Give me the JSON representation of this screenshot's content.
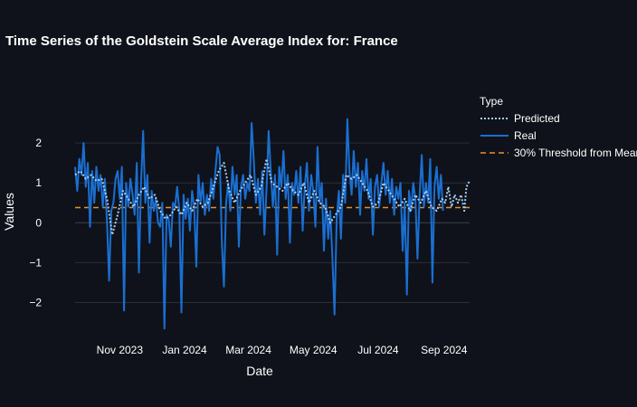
{
  "chart_data": {
    "type": "line",
    "title": "Time Series of the Goldstein Scale Average Index for: France",
    "xlabel": "Date",
    "ylabel": "Values",
    "x_range": [
      "2023-09-20",
      "2024-09-25"
    ],
    "ylim": [
      -2.85,
      2.75
    ],
    "x_ticks": [
      {
        "date": "2023-11-01",
        "label": "Nov 2023"
      },
      {
        "date": "2024-01-01",
        "label": "Jan 2024"
      },
      {
        "date": "2024-03-01",
        "label": "Mar 2024"
      },
      {
        "date": "2024-05-01",
        "label": "May 2024"
      },
      {
        "date": "2024-07-01",
        "label": "Jul 2024"
      },
      {
        "date": "2024-09-01",
        "label": "Sep 2024"
      }
    ],
    "y_ticks": [
      {
        "value": 2,
        "label": "2"
      },
      {
        "value": 1,
        "label": "1"
      },
      {
        "value": 0,
        "label": "0"
      },
      {
        "value": -1,
        "label": "−1"
      },
      {
        "value": -2,
        "label": "−2"
      }
    ],
    "grid": true,
    "legend": {
      "title": "Type",
      "position": "right-top"
    },
    "series": [
      {
        "name": "Predicted",
        "style": "dotted",
        "color": "#a8cdf0",
        "points": [
          [
            "2023-09-20",
            1.2
          ],
          [
            "2023-09-25",
            1.3
          ],
          [
            "2023-09-30",
            1.1
          ],
          [
            "2023-10-05",
            1.2
          ],
          [
            "2023-10-10",
            1.05
          ],
          [
            "2023-10-15",
            1.1
          ],
          [
            "2023-10-20",
            0.6
          ],
          [
            "2023-10-25",
            -0.3
          ],
          [
            "2023-10-30",
            0.2
          ],
          [
            "2023-11-04",
            0.8
          ],
          [
            "2023-11-09",
            0.6
          ],
          [
            "2023-11-14",
            0.4
          ],
          [
            "2023-11-19",
            0.7
          ],
          [
            "2023-11-24",
            0.9
          ],
          [
            "2023-11-29",
            0.6
          ],
          [
            "2023-12-04",
            0.7
          ],
          [
            "2023-12-09",
            0.3
          ],
          [
            "2023-12-14",
            0.1
          ],
          [
            "2023-12-19",
            0.2
          ],
          [
            "2023-12-24",
            0.4
          ],
          [
            "2023-12-29",
            0.2
          ],
          [
            "2024-01-03",
            0.5
          ],
          [
            "2024-01-08",
            0.3
          ],
          [
            "2024-01-13",
            0.6
          ],
          [
            "2024-01-18",
            0.4
          ],
          [
            "2024-01-23",
            0.5
          ],
          [
            "2024-01-28",
            0.9
          ],
          [
            "2024-02-02",
            1.3
          ],
          [
            "2024-02-07",
            1.5
          ],
          [
            "2024-02-12",
            0.8
          ],
          [
            "2024-02-17",
            0.5
          ],
          [
            "2024-02-22",
            0.8
          ],
          [
            "2024-02-27",
            1.0
          ],
          [
            "2024-03-03",
            1.2
          ],
          [
            "2024-03-08",
            0.7
          ],
          [
            "2024-03-13",
            0.9
          ],
          [
            "2024-03-18",
            1.6
          ],
          [
            "2024-03-23",
            1.0
          ],
          [
            "2024-03-28",
            0.9
          ],
          [
            "2024-04-02",
            0.8
          ],
          [
            "2024-04-07",
            1.0
          ],
          [
            "2024-04-12",
            0.8
          ],
          [
            "2024-04-17",
            0.7
          ],
          [
            "2024-04-22",
            1.0
          ],
          [
            "2024-04-27",
            0.5
          ],
          [
            "2024-05-02",
            0.8
          ],
          [
            "2024-05-07",
            0.5
          ],
          [
            "2024-05-12",
            0.4
          ],
          [
            "2024-05-17",
            0.0
          ],
          [
            "2024-05-22",
            0.2
          ],
          [
            "2024-05-27",
            0.4
          ],
          [
            "2024-06-01",
            1.2
          ],
          [
            "2024-06-06",
            1.1
          ],
          [
            "2024-06-11",
            1.2
          ],
          [
            "2024-06-16",
            1.0
          ],
          [
            "2024-06-21",
            0.8
          ],
          [
            "2024-06-26",
            0.4
          ],
          [
            "2024-07-01",
            0.5
          ],
          [
            "2024-07-06",
            1.0
          ],
          [
            "2024-07-11",
            0.8
          ],
          [
            "2024-07-16",
            0.6
          ],
          [
            "2024-07-21",
            0.4
          ],
          [
            "2024-07-26",
            0.6
          ],
          [
            "2024-07-31",
            0.3
          ],
          [
            "2024-08-05",
            0.7
          ],
          [
            "2024-08-10",
            0.5
          ],
          [
            "2024-08-15",
            0.8
          ],
          [
            "2024-08-20",
            0.4
          ],
          [
            "2024-08-25",
            0.3
          ],
          [
            "2024-08-30",
            0.6
          ],
          [
            "2024-09-02",
            0.5
          ],
          [
            "2024-09-05",
            0.9
          ],
          [
            "2024-09-08",
            0.4
          ],
          [
            "2024-09-11",
            0.7
          ],
          [
            "2024-09-14",
            0.5
          ],
          [
            "2024-09-17",
            0.7
          ],
          [
            "2024-09-20",
            0.3
          ],
          [
            "2024-09-22",
            0.9
          ],
          [
            "2024-09-25",
            1.05
          ]
        ]
      },
      {
        "name": "Real",
        "style": "solid",
        "color": "#1a6fd1",
        "points": [
          [
            "2023-09-20",
            1.4
          ],
          [
            "2023-09-22",
            0.8
          ],
          [
            "2023-09-24",
            1.6
          ],
          [
            "2023-09-26",
            1.2
          ],
          [
            "2023-09-28",
            2.0
          ],
          [
            "2023-09-30",
            0.9
          ],
          [
            "2023-10-02",
            1.5
          ],
          [
            "2023-10-04",
            -0.1
          ],
          [
            "2023-10-06",
            1.3
          ],
          [
            "2023-10-08",
            0.5
          ],
          [
            "2023-10-10",
            1.4
          ],
          [
            "2023-10-12",
            0.8
          ],
          [
            "2023-10-14",
            1.2
          ],
          [
            "2023-10-16",
            0.4
          ],
          [
            "2023-10-18",
            1.1
          ],
          [
            "2023-10-20",
            0.0
          ],
          [
            "2023-10-22",
            -1.45
          ],
          [
            "2023-10-24",
            0.3
          ],
          [
            "2023-10-26",
            0.5
          ],
          [
            "2023-10-28",
            1.1
          ],
          [
            "2023-10-30",
            1.3
          ],
          [
            "2023-11-01",
            0.6
          ],
          [
            "2023-11-03",
            1.4
          ],
          [
            "2023-11-05",
            -2.2
          ],
          [
            "2023-11-07",
            1.0
          ],
          [
            "2023-11-09",
            0.4
          ],
          [
            "2023-11-11",
            1.1
          ],
          [
            "2023-11-13",
            0.7
          ],
          [
            "2023-11-15",
            0.2
          ],
          [
            "2023-11-17",
            1.5
          ],
          [
            "2023-11-19",
            -1.25
          ],
          [
            "2023-11-21",
            1.0
          ],
          [
            "2023-11-23",
            2.3
          ],
          [
            "2023-11-25",
            0.5
          ],
          [
            "2023-11-27",
            1.2
          ],
          [
            "2023-11-29",
            -0.5
          ],
          [
            "2023-12-01",
            0.8
          ],
          [
            "2023-12-03",
            0.3
          ],
          [
            "2023-12-05",
            0.6
          ],
          [
            "2023-12-07",
            0.0
          ],
          [
            "2023-12-09",
            -0.1
          ],
          [
            "2023-12-11",
            0.5
          ],
          [
            "2023-12-13",
            -2.65
          ],
          [
            "2023-12-15",
            0.2
          ],
          [
            "2023-12-17",
            0.1
          ],
          [
            "2023-12-19",
            -0.6
          ],
          [
            "2023-12-21",
            0.5
          ],
          [
            "2023-12-23",
            0.4
          ],
          [
            "2023-12-25",
            0.9
          ],
          [
            "2023-12-27",
            0.3
          ],
          [
            "2023-12-29",
            -2.25
          ],
          [
            "2023-12-31",
            0.7
          ],
          [
            "2024-01-02",
            0.1
          ],
          [
            "2024-01-04",
            0.6
          ],
          [
            "2024-01-06",
            -0.2
          ],
          [
            "2024-01-08",
            0.8
          ],
          [
            "2024-01-10",
            0.4
          ],
          [
            "2024-01-12",
            -1.1
          ],
          [
            "2024-01-14",
            1.2
          ],
          [
            "2024-01-16",
            0.5
          ],
          [
            "2024-01-18",
            1.0
          ],
          [
            "2024-01-20",
            0.2
          ],
          [
            "2024-01-22",
            0.7
          ],
          [
            "2024-01-24",
            0.3
          ],
          [
            "2024-01-26",
            1.1
          ],
          [
            "2024-01-28",
            0.6
          ],
          [
            "2024-01-30",
            1.3
          ],
          [
            "2024-02-01",
            1.9
          ],
          [
            "2024-02-03",
            1.7
          ],
          [
            "2024-02-05",
            -0.5
          ],
          [
            "2024-02-07",
            -1.6
          ],
          [
            "2024-02-09",
            0.5
          ],
          [
            "2024-02-11",
            1.0
          ],
          [
            "2024-02-13",
            0.3
          ],
          [
            "2024-02-15",
            1.4
          ],
          [
            "2024-02-17",
            0.7
          ],
          [
            "2024-02-19",
            1.2
          ],
          [
            "2024-02-21",
            -0.6
          ],
          [
            "2024-02-23",
            0.9
          ],
          [
            "2024-02-25",
            1.2
          ],
          [
            "2024-02-27",
            0.6
          ],
          [
            "2024-02-29",
            1.0
          ],
          [
            "2024-03-02",
            0.8
          ],
          [
            "2024-03-04",
            2.5
          ],
          [
            "2024-03-06",
            1.6
          ],
          [
            "2024-03-08",
            0.5
          ],
          [
            "2024-03-10",
            1.1
          ],
          [
            "2024-03-12",
            0.2
          ],
          [
            "2024-03-14",
            1.3
          ],
          [
            "2024-03-16",
            -0.3
          ],
          [
            "2024-03-18",
            0.8
          ],
          [
            "2024-03-20",
            2.3
          ],
          [
            "2024-03-22",
            1.3
          ],
          [
            "2024-03-24",
            0.4
          ],
          [
            "2024-03-26",
            1.2
          ],
          [
            "2024-03-28",
            -0.8
          ],
          [
            "2024-03-30",
            1.4
          ],
          [
            "2024-04-01",
            0.9
          ],
          [
            "2024-04-03",
            1.8
          ],
          [
            "2024-04-05",
            0.6
          ],
          [
            "2024-04-07",
            1.2
          ],
          [
            "2024-04-09",
            -0.5
          ],
          [
            "2024-04-11",
            1.0
          ],
          [
            "2024-04-13",
            0.7
          ],
          [
            "2024-04-15",
            1.3
          ],
          [
            "2024-04-17",
            0.5
          ],
          [
            "2024-04-19",
            1.4
          ],
          [
            "2024-04-21",
            -0.2
          ],
          [
            "2024-04-23",
            0.9
          ],
          [
            "2024-04-25",
            1.5
          ],
          [
            "2024-04-27",
            0.3
          ],
          [
            "2024-04-29",
            1.2
          ],
          [
            "2024-05-01",
            0.8
          ],
          [
            "2024-05-03",
            -0.1
          ],
          [
            "2024-05-05",
            1.9
          ],
          [
            "2024-05-07",
            0.5
          ],
          [
            "2024-05-09",
            1.0
          ],
          [
            "2024-05-11",
            -0.7
          ],
          [
            "2024-05-13",
            0.6
          ],
          [
            "2024-05-15",
            -0.4
          ],
          [
            "2024-05-17",
            0.3
          ],
          [
            "2024-05-19",
            -0.9
          ],
          [
            "2024-05-21",
            -2.3
          ],
          [
            "2024-05-23",
            0.1
          ],
          [
            "2024-05-25",
            0.8
          ],
          [
            "2024-05-27",
            -0.4
          ],
          [
            "2024-05-29",
            1.2
          ],
          [
            "2024-05-31",
            0.5
          ],
          [
            "2024-06-02",
            2.6
          ],
          [
            "2024-06-04",
            1.3
          ],
          [
            "2024-06-06",
            0.7
          ],
          [
            "2024-06-08",
            1.8
          ],
          [
            "2024-06-10",
            0.9
          ],
          [
            "2024-06-12",
            1.5
          ],
          [
            "2024-06-14",
            0.2
          ],
          [
            "2024-06-16",
            1.3
          ],
          [
            "2024-06-18",
            0.8
          ],
          [
            "2024-06-20",
            1.6
          ],
          [
            "2024-06-22",
            0.6
          ],
          [
            "2024-06-24",
            1.1
          ],
          [
            "2024-06-26",
            -0.3
          ],
          [
            "2024-06-28",
            0.9
          ],
          [
            "2024-06-30",
            1.2
          ],
          [
            "2024-07-02",
            0.4
          ],
          [
            "2024-07-04",
            1.0
          ],
          [
            "2024-07-06",
            1.5
          ],
          [
            "2024-07-08",
            0.7
          ],
          [
            "2024-07-10",
            1.3
          ],
          [
            "2024-07-12",
            0.5
          ],
          [
            "2024-07-14",
            1.1
          ],
          [
            "2024-07-16",
            0.2
          ],
          [
            "2024-07-18",
            0.9
          ],
          [
            "2024-07-20",
            0.6
          ],
          [
            "2024-07-22",
            1.0
          ],
          [
            "2024-07-24",
            -0.7
          ],
          [
            "2024-07-26",
            0.5
          ],
          [
            "2024-07-28",
            -1.8
          ],
          [
            "2024-07-30",
            0.8
          ],
          [
            "2024-08-01",
            0.3
          ],
          [
            "2024-08-03",
            1.0
          ],
          [
            "2024-08-05",
            0.6
          ],
          [
            "2024-08-07",
            -0.9
          ],
          [
            "2024-08-09",
            0.7
          ],
          [
            "2024-08-11",
            1.7
          ],
          [
            "2024-08-13",
            0.4
          ],
          [
            "2024-08-15",
            1.0
          ],
          [
            "2024-08-17",
            0.5
          ],
          [
            "2024-08-19",
            1.6
          ],
          [
            "2024-08-21",
            -1.5
          ],
          [
            "2024-08-23",
            0.9
          ],
          [
            "2024-08-25",
            1.4
          ],
          [
            "2024-08-27",
            0.6
          ],
          [
            "2024-08-29",
            1.2
          ],
          [
            "2024-08-31",
            0.3
          ]
        ]
      },
      {
        "name": "30% Threshold from Mean",
        "style": "dashed",
        "color": "#e8912d",
        "points": [
          [
            "2023-09-20",
            0.38
          ],
          [
            "2024-09-25",
            0.38
          ]
        ]
      }
    ]
  }
}
